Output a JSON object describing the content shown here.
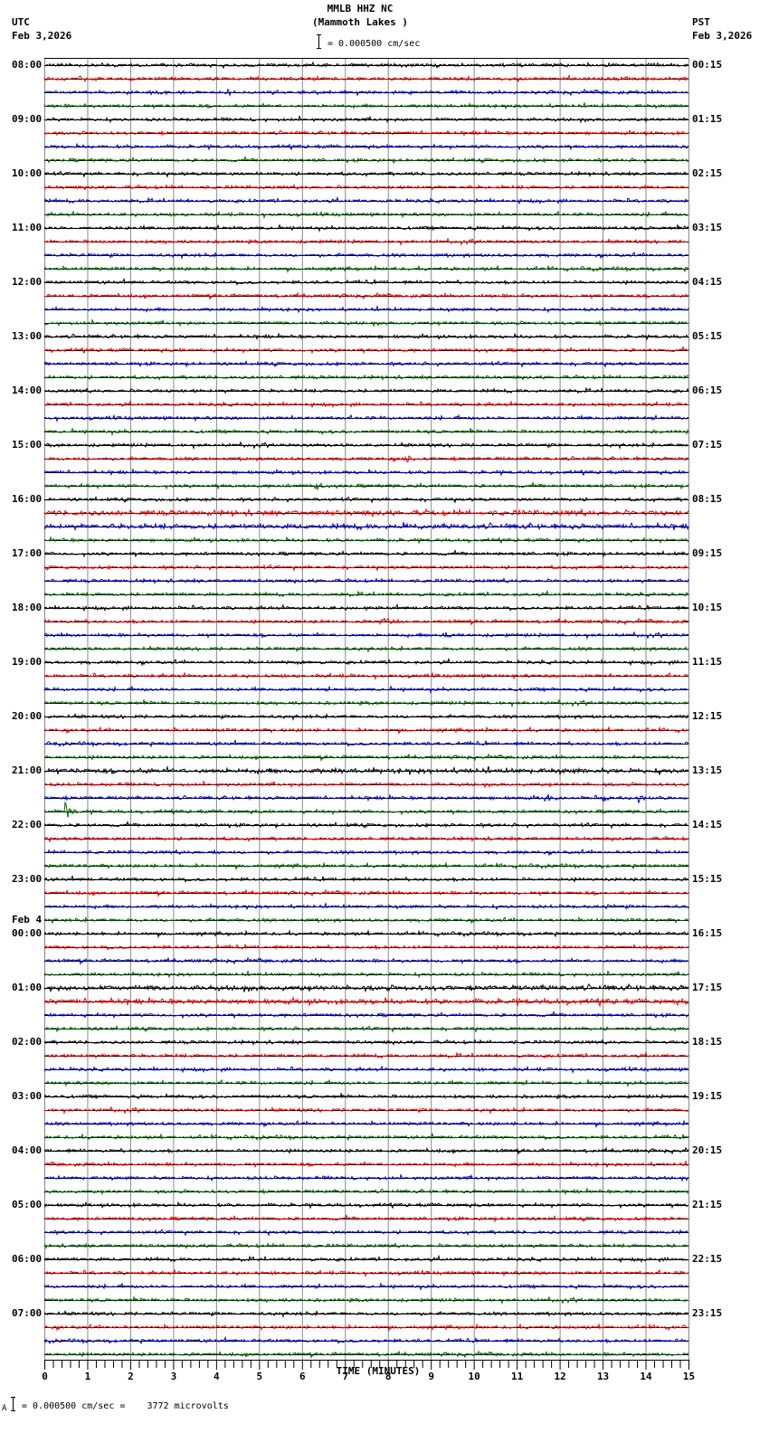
{
  "header": {
    "station": "MMLB HHZ NC",
    "location": "(Mammoth Lakes )",
    "scale": "= 0.000500 cm/sec",
    "left_tz": "UTC",
    "left_date": "Feb 3,2026",
    "right_tz": "PST",
    "right_date": "Feb 3,2026"
  },
  "footer": {
    "scale_note": "= 0.000500 cm/sec =    3772 microvolts",
    "scale_prefix": "A"
  },
  "colors": {
    "traces": [
      "#000000",
      "#ee0000",
      "#0000cc",
      "#006400"
    ],
    "grid": "#888888",
    "baseline": "#000000"
  },
  "chart_data": {
    "type": "line",
    "title": "MMLB HHZ NC (Mammoth Lakes )",
    "subtitle": "= 0.000500 cm/sec",
    "xlabel": "TIME (MINUTES)",
    "ylabel": "",
    "xlim": [
      0,
      15
    ],
    "x_ticks": [
      "0",
      "1",
      "2",
      "3",
      "4",
      "5",
      "6",
      "7",
      "8",
      "9",
      "10",
      "11",
      "12",
      "13",
      "14",
      "15"
    ],
    "minor_ticks_per_minute": 5,
    "lines_per_hour": 4,
    "total_lines": 96,
    "grid": true,
    "left_labels": [
      {
        "line": 0,
        "text": "08:00"
      },
      {
        "line": 4,
        "text": "09:00"
      },
      {
        "line": 8,
        "text": "10:00"
      },
      {
        "line": 12,
        "text": "11:00"
      },
      {
        "line": 16,
        "text": "12:00"
      },
      {
        "line": 20,
        "text": "13:00"
      },
      {
        "line": 24,
        "text": "14:00"
      },
      {
        "line": 28,
        "text": "15:00"
      },
      {
        "line": 32,
        "text": "16:00"
      },
      {
        "line": 36,
        "text": "17:00"
      },
      {
        "line": 40,
        "text": "18:00"
      },
      {
        "line": 44,
        "text": "19:00"
      },
      {
        "line": 48,
        "text": "20:00"
      },
      {
        "line": 52,
        "text": "21:00"
      },
      {
        "line": 56,
        "text": "22:00"
      },
      {
        "line": 60,
        "text": "23:00"
      },
      {
        "line": 64,
        "text": "00:00"
      },
      {
        "line": 68,
        "text": "01:00"
      },
      {
        "line": 72,
        "text": "02:00"
      },
      {
        "line": 76,
        "text": "03:00"
      },
      {
        "line": 80,
        "text": "04:00"
      },
      {
        "line": 84,
        "text": "05:00"
      },
      {
        "line": 88,
        "text": "06:00"
      },
      {
        "line": 92,
        "text": "07:00"
      }
    ],
    "date_change_label": {
      "line": 63,
      "text": "Feb 4"
    },
    "right_labels": [
      {
        "line": 0,
        "text": "00:15"
      },
      {
        "line": 4,
        "text": "01:15"
      },
      {
        "line": 8,
        "text": "02:15"
      },
      {
        "line": 12,
        "text": "03:15"
      },
      {
        "line": 16,
        "text": "04:15"
      },
      {
        "line": 20,
        "text": "05:15"
      },
      {
        "line": 24,
        "text": "06:15"
      },
      {
        "line": 28,
        "text": "07:15"
      },
      {
        "line": 32,
        "text": "08:15"
      },
      {
        "line": 36,
        "text": "09:15"
      },
      {
        "line": 40,
        "text": "10:15"
      },
      {
        "line": 44,
        "text": "11:15"
      },
      {
        "line": 48,
        "text": "12:15"
      },
      {
        "line": 52,
        "text": "13:15"
      },
      {
        "line": 56,
        "text": "14:15"
      },
      {
        "line": 60,
        "text": "15:15"
      },
      {
        "line": 64,
        "text": "16:15"
      },
      {
        "line": 68,
        "text": "17:15"
      },
      {
        "line": 72,
        "text": "18:15"
      },
      {
        "line": 76,
        "text": "19:15"
      },
      {
        "line": 80,
        "text": "20:15"
      },
      {
        "line": 84,
        "text": "21:15"
      },
      {
        "line": 88,
        "text": "22:15"
      },
      {
        "line": 92,
        "text": "23:15"
      }
    ],
    "events": [
      {
        "line": 29,
        "minute": 8.4,
        "amplitude": 6,
        "duration": 0.5
      },
      {
        "line": 31,
        "minute": 6.3,
        "amplitude": 9,
        "duration": 0.3
      },
      {
        "line": 34,
        "minute": 8.35,
        "amplitude": 8,
        "duration": 0.6
      },
      {
        "line": 40,
        "minute": 7.5,
        "amplitude": 5,
        "duration": 0.4
      },
      {
        "line": 41,
        "minute": 7.8,
        "amplitude": 6,
        "duration": 0.8
      },
      {
        "line": 42,
        "minute": 9.3,
        "amplitude": 6,
        "duration": 0.4
      },
      {
        "line": 44,
        "minute": 5.9,
        "amplitude": 4,
        "duration": 0.4
      },
      {
        "line": 54,
        "minute": 11.65,
        "amplitude": 8,
        "duration": 0.4
      },
      {
        "line": 54,
        "minute": 13.0,
        "amplitude": 9,
        "duration": 0.4
      },
      {
        "line": 54,
        "minute": 13.85,
        "amplitude": 8,
        "duration": 0.3
      },
      {
        "line": 55,
        "minute": 0.5,
        "amplitude": 11,
        "duration": 0.35
      },
      {
        "line": 58,
        "minute": 3.95,
        "amplitude": 4,
        "duration": 0.2
      },
      {
        "line": 62,
        "minute": 12.75,
        "amplitude": 3,
        "duration": 0.6
      }
    ],
    "noisy_lines": [
      33,
      34,
      52,
      68,
      69
    ],
    "annotations": []
  }
}
